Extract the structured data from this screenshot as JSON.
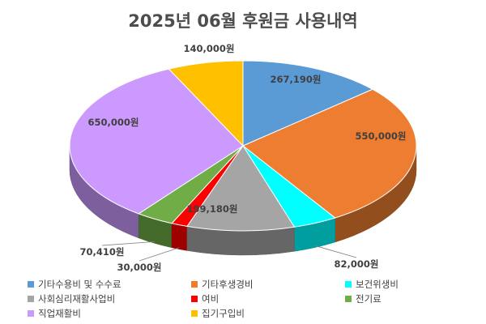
{
  "chart_data": {
    "type": "pie",
    "title": "2025년 06월 후원금 사용내역",
    "legend_position": "bottom",
    "slices": [
      {
        "name": "기타수용비 및 수수료",
        "value": 267190,
        "label": "267,190원",
        "color": "#5b9bd5"
      },
      {
        "name": "기타후생경비",
        "value": 550000,
        "label": "550,000원",
        "color": "#ed7d31"
      },
      {
        "name": "보건위생비",
        "value": 82000,
        "label": "82,000원",
        "color": "#00ffff"
      },
      {
        "name": "사회심리재활사업비",
        "value": 199180,
        "label": "199,180원",
        "color": "#a5a5a5"
      },
      {
        "name": "여비",
        "value": 30000,
        "label": "30,000원",
        "color": "#ff0000"
      },
      {
        "name": "전기료",
        "value": 70410,
        "label": "70,410원",
        "color": "#70ad47"
      },
      {
        "name": "직업재활비",
        "value": 650000,
        "label": "650,000원",
        "color": "#cc99ff"
      },
      {
        "name": "집기구입비",
        "value": 140000,
        "label": "140,000원",
        "color": "#ffc000"
      }
    ]
  }
}
